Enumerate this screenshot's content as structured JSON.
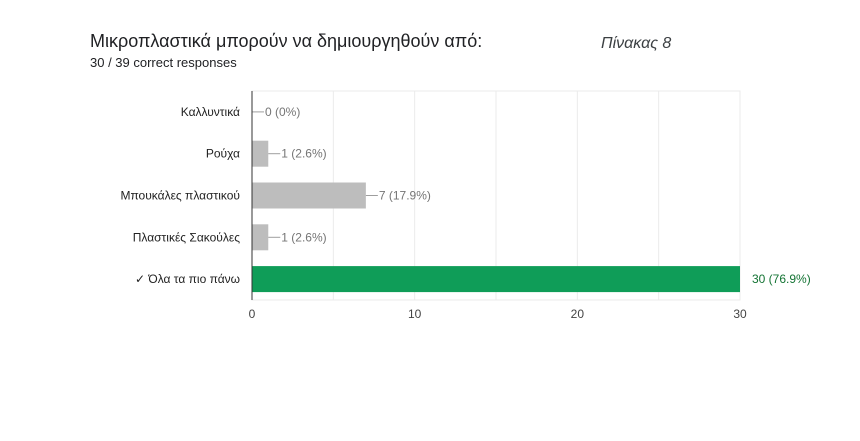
{
  "header": {
    "title": "Μικροπλαστικά μπορούν να δημιουργηθούν από:",
    "subtitle": "30 / 39 correct responses",
    "caption": "Πίνακας 8"
  },
  "colors": {
    "bar_default": "#bdbdbd",
    "bar_correct": "#0f9d58",
    "label_default": "#757575",
    "label_correct": "#137333",
    "grid": "#ebebeb",
    "axis": "#333333"
  },
  "chart_data": {
    "type": "bar",
    "orientation": "horizontal",
    "categories": [
      "Καλλυντικά",
      "Ρούχα",
      "Μπουκάλες πλαστικού",
      "Πλαστικές Σακούλες",
      "✓ Όλα τα πιο πάνω"
    ],
    "values": [
      0,
      1,
      7,
      1,
      30
    ],
    "data_labels": [
      "0 (0%)",
      "1 (2.6%)",
      "7 (17.9%)",
      "1 (2.6%)",
      "30 (76.9%)"
    ],
    "correct": [
      false,
      false,
      false,
      false,
      true
    ],
    "xlim": [
      0,
      30
    ],
    "xticks": [
      0,
      10,
      20,
      30
    ],
    "grid": true,
    "legend": "none"
  }
}
